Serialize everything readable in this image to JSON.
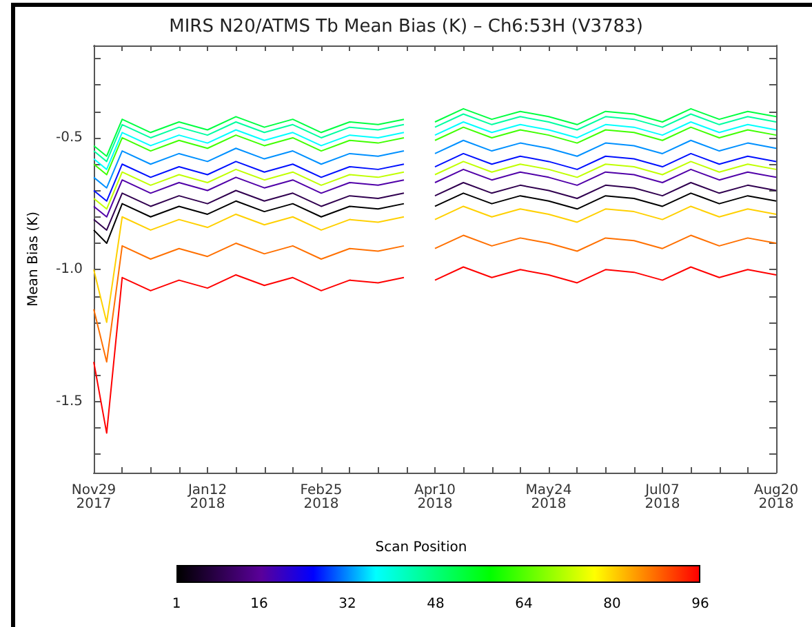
{
  "chart_data": {
    "type": "line",
    "title": "MIRS N20/ATMS Tb Mean Bias (K) – Ch6:53H (V3783)",
    "ylabel": "Mean Bias (K)",
    "clabel": "Scan Position",
    "clim": [
      1,
      96
    ],
    "cticks": [
      1,
      16,
      32,
      48,
      64,
      80,
      96
    ],
    "x": [
      "2017-11-29",
      "2017-12-04",
      "2017-12-10",
      "2017-12-21",
      "2018-01-01",
      "2018-01-12",
      "2018-01-23",
      "2018-02-03",
      "2018-02-14",
      "2018-02-25",
      "2018-03-08",
      "2018-03-19",
      "2018-03-29",
      "2018-04-01",
      "2018-04-10",
      "2018-04-21",
      "2018-05-02",
      "2018-05-13",
      "2018-05-24",
      "2018-06-04",
      "2018-06-15",
      "2018-06-26",
      "2018-07-07",
      "2018-07-18",
      "2018-07-29",
      "2018-08-09",
      "2018-08-20"
    ],
    "xlim": [
      "2017-11-29",
      "2018-08-20"
    ],
    "xticks": [
      {
        "value": "2017-11-29",
        "label": "Nov29\n2017"
      },
      {
        "value": "2017-12-10",
        "label": null
      },
      {
        "value": "2017-12-21",
        "label": null
      },
      {
        "value": "2018-01-01",
        "label": null
      },
      {
        "value": "2018-01-12",
        "label": "Jan12\n2018"
      },
      {
        "value": "2018-01-23",
        "label": null
      },
      {
        "value": "2018-02-03",
        "label": null
      },
      {
        "value": "2018-02-14",
        "label": null
      },
      {
        "value": "2018-02-25",
        "label": "Feb25\n2018"
      },
      {
        "value": "2018-03-08",
        "label": null
      },
      {
        "value": "2018-03-19",
        "label": null
      },
      {
        "value": "2018-03-30",
        "label": null
      },
      {
        "value": "2018-04-10",
        "label": "Apr10\n2018"
      },
      {
        "value": "2018-04-21",
        "label": null
      },
      {
        "value": "2018-05-02",
        "label": null
      },
      {
        "value": "2018-05-13",
        "label": null
      },
      {
        "value": "2018-05-24",
        "label": "May24\n2018"
      },
      {
        "value": "2018-06-04",
        "label": null
      },
      {
        "value": "2018-06-15",
        "label": null
      },
      {
        "value": "2018-06-26",
        "label": null
      },
      {
        "value": "2018-07-07",
        "label": "Jul07\n2018"
      },
      {
        "value": "2018-07-18",
        "label": null
      },
      {
        "value": "2018-07-29",
        "label": null
      },
      {
        "value": "2018-08-09",
        "label": null
      },
      {
        "value": "2018-08-20",
        "label": "Aug20\n2018"
      }
    ],
    "ylim": [
      -1.77,
      -0.15
    ],
    "yticks": [
      {
        "value": -0.2,
        "label": null
      },
      {
        "value": -0.3,
        "label": null
      },
      {
        "value": -0.4,
        "label": null
      },
      {
        "value": -0.5,
        "label": "-0.5"
      },
      {
        "value": -0.6,
        "label": null
      },
      {
        "value": -0.7,
        "label": null
      },
      {
        "value": -0.8,
        "label": null
      },
      {
        "value": -0.9,
        "label": null
      },
      {
        "value": -1.0,
        "label": "-1.0"
      },
      {
        "value": -1.1,
        "label": null
      },
      {
        "value": -1.2,
        "label": null
      },
      {
        "value": -1.3,
        "label": null
      },
      {
        "value": -1.4,
        "label": null
      },
      {
        "value": -1.5,
        "label": "-1.5"
      },
      {
        "value": -1.6,
        "label": null
      },
      {
        "value": -1.7,
        "label": null
      }
    ],
    "marker": "none",
    "series": [
      {
        "color": "#000000",
        "values": [
          -0.85,
          -0.9,
          -0.75,
          -0.8,
          -0.76,
          -0.79,
          -0.74,
          -0.78,
          -0.75,
          -0.8,
          -0.76,
          -0.77,
          -0.75,
          null,
          -0.76,
          -0.71,
          -0.75,
          -0.72,
          -0.74,
          -0.77,
          -0.72,
          -0.73,
          -0.76,
          -0.71,
          -0.75,
          -0.72,
          -0.74
        ]
      },
      {
        "color": "#30004f",
        "values": [
          -0.81,
          -0.85,
          -0.71,
          -0.76,
          -0.72,
          -0.75,
          -0.7,
          -0.74,
          -0.71,
          -0.76,
          -0.72,
          -0.73,
          -0.71,
          null,
          -0.72,
          -0.67,
          -0.71,
          -0.68,
          -0.7,
          -0.73,
          -0.68,
          -0.69,
          -0.72,
          -0.67,
          -0.71,
          -0.68,
          -0.7
        ]
      },
      {
        "color": "#5000a8",
        "values": [
          -0.76,
          -0.8,
          -0.66,
          -0.71,
          -0.67,
          -0.7,
          -0.65,
          -0.69,
          -0.66,
          -0.71,
          -0.67,
          -0.68,
          -0.66,
          null,
          -0.67,
          -0.62,
          -0.66,
          -0.63,
          -0.65,
          -0.68,
          -0.63,
          -0.64,
          -0.67,
          -0.62,
          -0.66,
          -0.63,
          -0.65
        ]
      },
      {
        "color": "#0010ff",
        "values": [
          -0.7,
          -0.74,
          -0.6,
          -0.65,
          -0.61,
          -0.64,
          -0.59,
          -0.63,
          -0.6,
          -0.65,
          -0.61,
          -0.62,
          -0.6,
          null,
          -0.61,
          -0.56,
          -0.6,
          -0.57,
          -0.59,
          -0.62,
          -0.57,
          -0.58,
          -0.61,
          -0.56,
          -0.6,
          -0.57,
          -0.59
        ]
      },
      {
        "color": "#0090ff",
        "values": [
          -0.65,
          -0.69,
          -0.55,
          -0.6,
          -0.56,
          -0.59,
          -0.54,
          -0.58,
          -0.55,
          -0.6,
          -0.56,
          -0.57,
          -0.55,
          null,
          -0.56,
          -0.51,
          -0.55,
          -0.52,
          -0.54,
          -0.57,
          -0.52,
          -0.53,
          -0.56,
          -0.51,
          -0.55,
          -0.52,
          -0.54
        ]
      },
      {
        "color": "#00ffff",
        "values": [
          -0.58,
          -0.62,
          -0.48,
          -0.53,
          -0.49,
          -0.52,
          -0.47,
          -0.51,
          -0.48,
          -0.53,
          -0.49,
          -0.5,
          -0.48,
          null,
          -0.49,
          -0.44,
          -0.48,
          -0.45,
          -0.47,
          -0.5,
          -0.45,
          -0.46,
          -0.49,
          -0.44,
          -0.48,
          -0.45,
          -0.47
        ]
      },
      {
        "color": "#00ffa0",
        "values": [
          -0.55,
          -0.59,
          -0.45,
          -0.5,
          -0.46,
          -0.49,
          -0.44,
          -0.48,
          -0.45,
          -0.5,
          -0.46,
          -0.47,
          -0.45,
          null,
          -0.46,
          -0.41,
          -0.45,
          -0.42,
          -0.44,
          -0.47,
          -0.42,
          -0.43,
          -0.46,
          -0.41,
          -0.45,
          -0.42,
          -0.44
        ]
      },
      {
        "color": "#00ff40",
        "values": [
          -0.53,
          -0.57,
          -0.43,
          -0.48,
          -0.44,
          -0.47,
          -0.42,
          -0.46,
          -0.43,
          -0.48,
          -0.44,
          -0.45,
          -0.43,
          null,
          -0.44,
          -0.39,
          -0.43,
          -0.4,
          -0.42,
          -0.45,
          -0.4,
          -0.41,
          -0.44,
          -0.39,
          -0.43,
          -0.4,
          -0.42
        ]
      },
      {
        "color": "#40ff00",
        "values": [
          -0.6,
          -0.64,
          -0.5,
          -0.55,
          -0.51,
          -0.54,
          -0.49,
          -0.53,
          -0.5,
          -0.55,
          -0.51,
          -0.52,
          -0.5,
          null,
          -0.51,
          -0.46,
          -0.5,
          -0.47,
          -0.49,
          -0.52,
          -0.47,
          -0.48,
          -0.51,
          -0.46,
          -0.5,
          -0.47,
          -0.49
        ]
      },
      {
        "color": "#c0ff00",
        "values": [
          -0.73,
          -0.77,
          -0.63,
          -0.68,
          -0.64,
          -0.67,
          -0.62,
          -0.66,
          -0.63,
          -0.68,
          -0.64,
          -0.65,
          -0.63,
          null,
          -0.64,
          -0.59,
          -0.63,
          -0.6,
          -0.62,
          -0.65,
          -0.6,
          -0.61,
          -0.64,
          -0.59,
          -0.63,
          -0.6,
          -0.62
        ]
      },
      {
        "color": "#ffd000",
        "values": [
          -1.0,
          -1.2,
          -0.8,
          -0.85,
          -0.81,
          -0.84,
          -0.79,
          -0.83,
          -0.8,
          -0.85,
          -0.81,
          -0.82,
          -0.8,
          null,
          -0.81,
          -0.76,
          -0.8,
          -0.77,
          -0.79,
          -0.82,
          -0.77,
          -0.78,
          -0.81,
          -0.76,
          -0.8,
          -0.77,
          -0.79
        ]
      },
      {
        "color": "#ff7000",
        "values": [
          -1.15,
          -1.35,
          -0.91,
          -0.96,
          -0.92,
          -0.95,
          -0.9,
          -0.94,
          -0.91,
          -0.96,
          -0.92,
          -0.93,
          -0.91,
          null,
          -0.92,
          -0.87,
          -0.91,
          -0.88,
          -0.9,
          -0.93,
          -0.88,
          -0.89,
          -0.92,
          -0.87,
          -0.91,
          -0.88,
          -0.9
        ]
      },
      {
        "color": "#ff0000",
        "values": [
          -1.35,
          -1.62,
          -1.03,
          -1.08,
          -1.04,
          -1.07,
          -1.02,
          -1.06,
          -1.03,
          -1.08,
          -1.04,
          -1.05,
          -1.03,
          null,
          -1.04,
          -0.99,
          -1.03,
          -1.0,
          -1.02,
          -1.05,
          -1.0,
          -1.01,
          -1.04,
          -0.99,
          -1.03,
          -1.0,
          -1.02
        ]
      }
    ]
  }
}
